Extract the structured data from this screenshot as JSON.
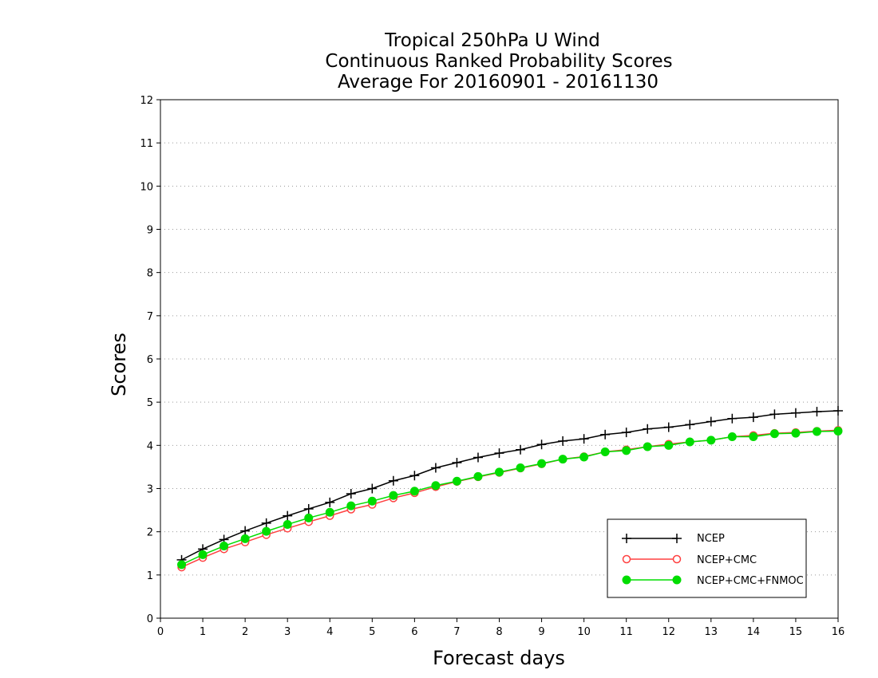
{
  "chart_data": {
    "type": "line",
    "title_lines": [
      "Tropical 250hPa U Wind",
      "Continuous Ranked Probability Scores",
      "Average For 20160901 - 20161130"
    ],
    "xlabel": "Forecast days",
    "ylabel": "Scores",
    "xlim": [
      0,
      16
    ],
    "ylim": [
      0,
      12
    ],
    "x_ticks": [
      0,
      1,
      2,
      3,
      4,
      5,
      6,
      7,
      8,
      9,
      10,
      11,
      12,
      13,
      14,
      15,
      16
    ],
    "y_ticks": [
      0,
      1,
      2,
      3,
      4,
      5,
      6,
      7,
      8,
      9,
      10,
      11,
      12
    ],
    "grid": "horizontal dotted",
    "legend_position": "bottom-right",
    "x": [
      0.5,
      1,
      1.5,
      2,
      2.5,
      3,
      3.5,
      4,
      4.5,
      5,
      5.5,
      6,
      6.5,
      7,
      7.5,
      8,
      8.5,
      9,
      9.5,
      10,
      10.5,
      11,
      11.5,
      12,
      12.5,
      13,
      13.5,
      14,
      14.5,
      15,
      15.5,
      16
    ],
    "series": [
      {
        "name": "NCEP",
        "color": "#000000",
        "marker": "plus",
        "values": [
          1.35,
          1.6,
          1.82,
          2.02,
          2.2,
          2.37,
          2.53,
          2.68,
          2.88,
          3.0,
          3.18,
          3.3,
          3.48,
          3.6,
          3.72,
          3.82,
          3.9,
          4.02,
          4.1,
          4.15,
          4.25,
          4.3,
          4.38,
          4.42,
          4.48,
          4.55,
          4.62,
          4.65,
          4.72,
          4.75,
          4.78,
          4.8
        ]
      },
      {
        "name": "NCEP+CMC",
        "color": "#ff4040",
        "marker": "open-circle",
        "values": [
          1.18,
          1.4,
          1.6,
          1.76,
          1.93,
          2.08,
          2.23,
          2.37,
          2.52,
          2.63,
          2.78,
          2.9,
          3.04,
          3.16,
          3.27,
          3.37,
          3.47,
          3.57,
          3.68,
          3.74,
          3.85,
          3.9,
          3.97,
          4.03,
          4.08,
          4.12,
          4.2,
          4.23,
          4.28,
          4.3,
          4.33,
          4.35
        ]
      },
      {
        "name": "NCEP+CMC+FNMOC",
        "color": "#00dd00",
        "marker": "filled-circle",
        "values": [
          1.24,
          1.47,
          1.67,
          1.84,
          2.01,
          2.17,
          2.32,
          2.45,
          2.6,
          2.71,
          2.84,
          2.94,
          3.07,
          3.17,
          3.28,
          3.38,
          3.48,
          3.58,
          3.68,
          3.73,
          3.85,
          3.88,
          3.97,
          4.0,
          4.08,
          4.12,
          4.2,
          4.2,
          4.27,
          4.28,
          4.32,
          4.33
        ]
      }
    ]
  }
}
